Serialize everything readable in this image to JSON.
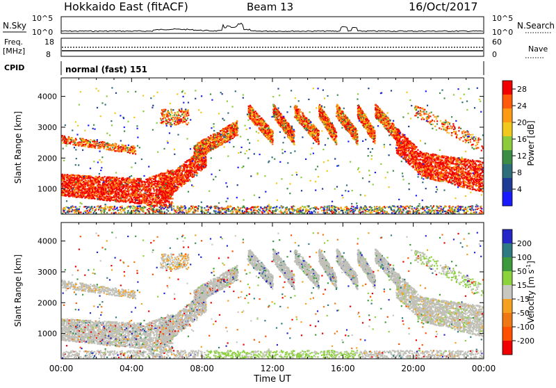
{
  "header": {
    "title": "Hokkaido East (fitACF)",
    "beam": "Beam 13",
    "date": "16/Oct/2017"
  },
  "top_panels": {
    "nsky_label": "N.Sky",
    "nsky_ticks": [
      "10^5",
      "10^0"
    ],
    "nsearch_label": "N.Search",
    "nsearch_ticks": [
      "10^5",
      "10^0"
    ],
    "freq_label": "Freq.",
    "freq_unit": "[MHz]",
    "freq_ticks": [
      "18",
      "8"
    ],
    "nave_label": "Nave",
    "nave_ticks": [
      "60",
      "0"
    ],
    "cpid_label": "CPID",
    "cpid_text": "normal (fast) 151"
  },
  "colors": {
    "power_scale": [
      "#1a1aff",
      "#1e3c96",
      "#2e6e7a",
      "#3c8c46",
      "#8ccc3c",
      "#f0c81e",
      "#ff9a14",
      "#ff5a0a",
      "#f00000"
    ],
    "velocity_scale": [
      "#2626c8",
      "#2e7a82",
      "#3c9a3c",
      "#8cd23c",
      "#c8c8c0",
      "#f5a01e",
      "#f07814",
      "#ff5000",
      "#f00000"
    ],
    "velocity_ground": "#c0c0b8"
  },
  "chart_data": [
    {
      "type": "heatmap",
      "name": "Power",
      "ylabel": "Slant Range [km]",
      "xlabel": "Time UT",
      "x_ticks": [
        "00:00",
        "04:00",
        "08:00",
        "12:00",
        "16:00",
        "20:00",
        "00:00"
      ],
      "x_range_hours": [
        0,
        24
      ],
      "y_ticks": [
        1000,
        2000,
        3000,
        4000
      ],
      "y_range_km": [
        180,
        4600
      ],
      "colorbar_label": "Power [dB]",
      "colorbar_ticks": [
        4,
        8,
        12,
        16,
        20,
        24,
        28
      ],
      "colorbar_range": [
        0,
        30
      ]
    },
    {
      "type": "heatmap",
      "name": "Velocity",
      "ylabel": "Slant Range [km]",
      "xlabel": "Time UT",
      "x_ticks": [
        "00:00",
        "04:00",
        "08:00",
        "12:00",
        "16:00",
        "20:00",
        "00:00"
      ],
      "x_range_hours": [
        0,
        24
      ],
      "y_ticks": [
        1000,
        2000,
        3000,
        4000
      ],
      "y_range_km": [
        180,
        4600
      ],
      "colorbar_label": "Velocity [m s",
      "colorbar_label_sup": "-1",
      "colorbar_label_end": "]",
      "colorbar_ticks": [
        "200",
        "100",
        "50",
        "15",
        "-15",
        "-50",
        "-100",
        "-200"
      ]
    }
  ],
  "xaxis_title": "Time UT"
}
